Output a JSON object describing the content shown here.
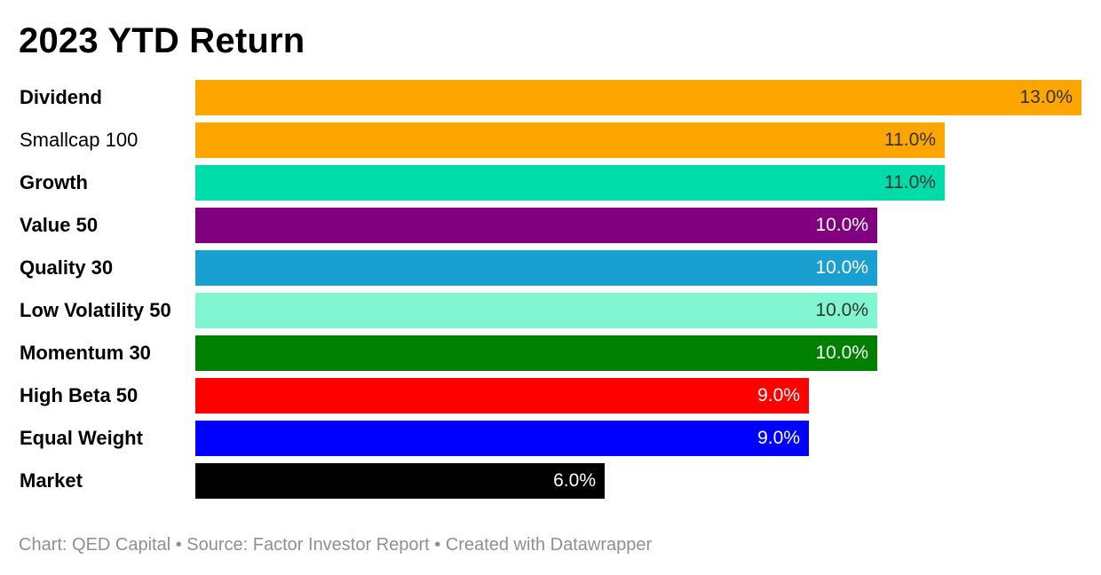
{
  "chart_data": {
    "type": "bar",
    "orientation": "horizontal",
    "title": "2023 YTD Return",
    "categories": [
      "Dividend",
      "Smallcap 100",
      "Growth",
      "Value 50",
      "Quality 30",
      "Low Volatility 50",
      "Momentum 30",
      "High Beta 50",
      "Equal Weight",
      "Market"
    ],
    "values": [
      13.0,
      11.0,
      11.0,
      10.0,
      10.0,
      10.0,
      10.0,
      9.0,
      9.0,
      6.0
    ],
    "value_labels": [
      "13.0%",
      "11.0%",
      "11.0%",
      "10.0%",
      "10.0%",
      "10.0%",
      "10.0%",
      "9.0%",
      "9.0%",
      "6.0%"
    ],
    "colors": [
      "#ffa500",
      "#ffa500",
      "#00dca9",
      "#800080",
      "#1aa0d0",
      "#80f5d0",
      "#008000",
      "#ff0000",
      "#0000ff",
      "#000000"
    ],
    "label_colors": [
      "#333333",
      "#333333",
      "#333333",
      "#ffffff",
      "#ffffff",
      "#333333",
      "#ffffff",
      "#ffffff",
      "#ffffff",
      "#ffffff"
    ],
    "bold_labels": [
      true,
      false,
      true,
      true,
      true,
      true,
      true,
      true,
      true,
      true
    ],
    "xlim": [
      0,
      13
    ],
    "grid": false,
    "legend": "none"
  },
  "footer": "Chart: QED Capital • Source: Factor Investor Report • Created with Datawrapper"
}
